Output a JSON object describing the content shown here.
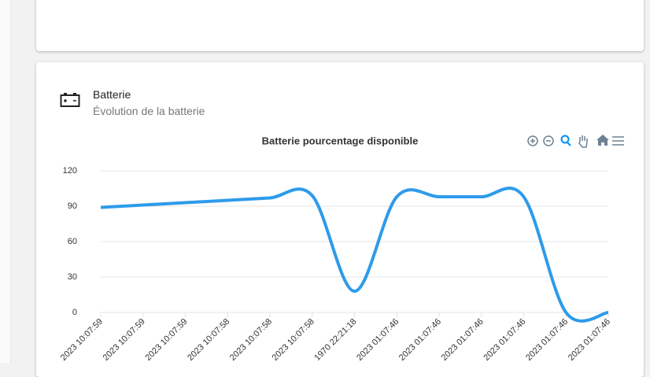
{
  "card": {
    "title": "Batterie",
    "subtitle": "Évolution de la batterie"
  },
  "chart_data": {
    "type": "line",
    "title": "Batterie pourcentage disponible",
    "categories": [
      "2023 10:07:59",
      "2023 10:07:59",
      "2023 10:07:59",
      "2023 10:07:58",
      "2023 10:07:58",
      "2023 10:07:58",
      "1970 22:21:18",
      "2023 01:07:46",
      "2023 01:07:46",
      "2023 01:07:46",
      "2023 01:07:46",
      "2023 01:07:46",
      "2023 01:07:46"
    ],
    "values": [
      89,
      91,
      93,
      95,
      97,
      99,
      18,
      98,
      98,
      98,
      98,
      0,
      0
    ],
    "color": "#2e9bea",
    "ylim": [
      0,
      120
    ],
    "yticks": [
      0,
      30,
      60,
      90,
      120
    ],
    "grid": true
  }
}
